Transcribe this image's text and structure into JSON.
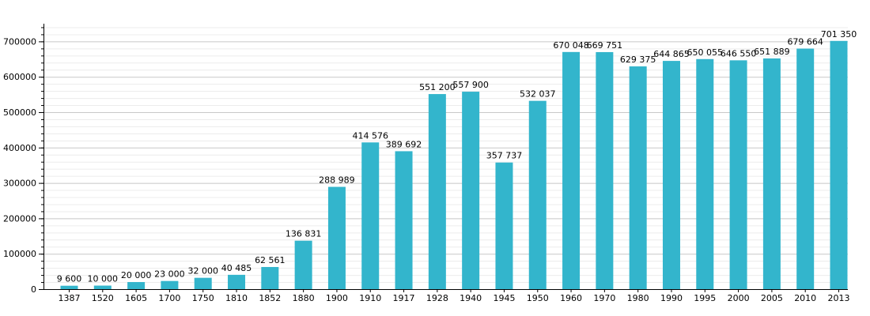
{
  "chart_data": {
    "type": "bar",
    "title": "",
    "xlabel": "",
    "ylabel": "",
    "ylim": [
      0,
      750000
    ],
    "grid": true,
    "bar_color": "#33b5cc",
    "yticks": [
      0,
      100000,
      200000,
      300000,
      400000,
      500000,
      600000,
      700000
    ],
    "ytick_labels": [
      "0",
      "100000",
      "200000",
      "300000",
      "400000",
      "500000",
      "600000",
      "700000"
    ],
    "categories": [
      "1387",
      "1520",
      "1605",
      "1700",
      "1750",
      "1810",
      "1852",
      "1880",
      "1900",
      "1910",
      "1917",
      "1928",
      "1940",
      "1945",
      "1950",
      "1960",
      "1970",
      "1980",
      "1990",
      "1995",
      "2000",
      "2005",
      "2010",
      "2013"
    ],
    "values": [
      9600,
      10000,
      20000,
      23000,
      32000,
      40485,
      62561,
      136831,
      288989,
      414576,
      389692,
      551200,
      557900,
      357737,
      532037,
      670048,
      669751,
      629375,
      644865,
      650055,
      646550,
      651889,
      679664,
      701350
    ],
    "value_labels": [
      "9 600",
      "10 000",
      "20 000",
      "23 000",
      "32 000",
      "40 485",
      "62 561",
      "136 831",
      "288 989",
      "414 576",
      "389 692",
      "551 200",
      "557 900",
      "357 737",
      "532 037",
      "670 048",
      "669 751",
      "629 375",
      "644 865",
      "650 055",
      "646 550",
      "651 889",
      "679 664",
      "701 350"
    ]
  }
}
